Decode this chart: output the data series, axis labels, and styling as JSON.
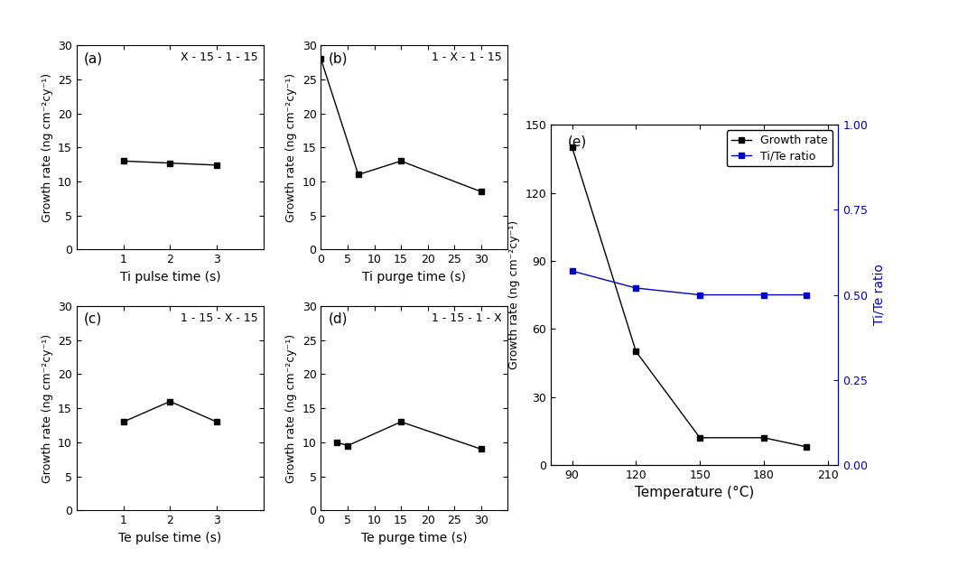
{
  "a": {
    "x": [
      1,
      2,
      3
    ],
    "y": [
      13.0,
      12.7,
      12.4
    ],
    "xlabel": "Ti pulse time (s)",
    "label": "X - 15 - 1 - 15",
    "xlim": [
      0,
      4
    ],
    "xticks": [
      1,
      2,
      3
    ]
  },
  "b": {
    "x": [
      0,
      7,
      15,
      30
    ],
    "y": [
      28.0,
      11.0,
      13.0,
      8.5
    ],
    "xlabel": "Ti purge time (s)",
    "label": "1 - X - 1 - 15",
    "xlim": [
      0,
      35
    ],
    "xticks": [
      0,
      5,
      10,
      15,
      20,
      25,
      30
    ]
  },
  "c": {
    "x": [
      1,
      2,
      3
    ],
    "y": [
      13.0,
      16.0,
      13.0
    ],
    "xlabel": "Te pulse time (s)",
    "label": "1 - 15 - X - 15",
    "xlim": [
      0,
      4
    ],
    "xticks": [
      1,
      2,
      3
    ]
  },
  "d": {
    "x": [
      3,
      5,
      15,
      30
    ],
    "y": [
      10.0,
      9.5,
      13.0,
      9.0
    ],
    "xlabel": "Te purge time (s)",
    "label": "1 - 15 - 1 - X",
    "xlim": [
      0,
      35
    ],
    "xticks": [
      0,
      5,
      10,
      15,
      20,
      25,
      30
    ]
  },
  "e": {
    "x": [
      90,
      120,
      150,
      180,
      200
    ],
    "growth_rate": [
      140,
      50,
      12,
      12,
      8
    ],
    "ti_te_ratio": [
      0.57,
      0.52,
      0.5,
      0.5,
      0.5
    ],
    "xlabel": "Temperature (°C)",
    "ylabel_left": "Growth rate (ng cm⁻²cy⁻¹)",
    "ylabel_right": "Ti/Te ratio",
    "xlim": [
      80,
      215
    ],
    "xticks": [
      90,
      120,
      150,
      180,
      210
    ],
    "ylim_left": [
      0,
      150
    ],
    "ylim_right": [
      0.0,
      1.0
    ],
    "yticks_left": [
      0,
      30,
      60,
      90,
      120,
      150
    ],
    "yticks_right": [
      0.0,
      0.25,
      0.5,
      0.75,
      1.0
    ],
    "legend_growth": "Growth rate",
    "legend_ratio": "Ti/Te ratio"
  },
  "ylabel": "Growth rate (ng cm⁻²cy⁻¹)",
  "ylim": [
    0,
    30
  ],
  "yticks": [
    0,
    5,
    10,
    15,
    20,
    25,
    30
  ],
  "marker": "s",
  "markersize": 5,
  "linecolor": "black",
  "linecolor_blue": "#0000cc"
}
